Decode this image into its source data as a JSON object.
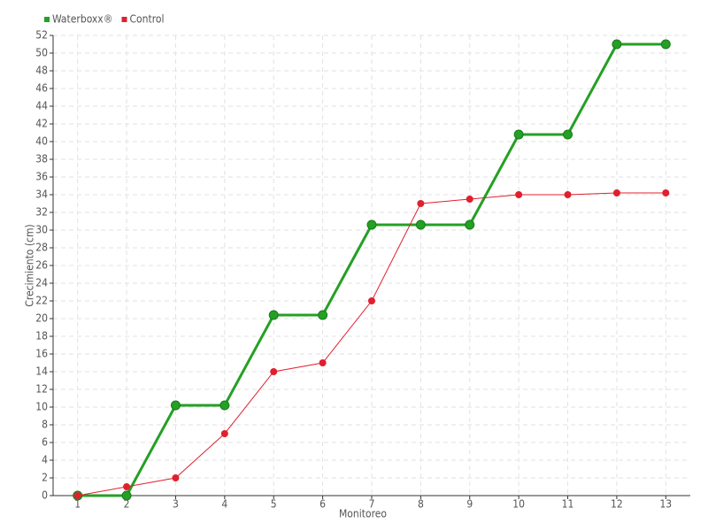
{
  "chart_data": {
    "type": "line",
    "x_label": "Monitoreo",
    "y_label": "Crecimiento (cm)",
    "categories": [
      "1",
      "2",
      "3",
      "4",
      "5",
      "6",
      "7",
      "8",
      "9",
      "10",
      "11",
      "12",
      "13"
    ],
    "series": [
      {
        "name": "Waterboxx®",
        "color": "#24a024",
        "values": [
          0,
          0,
          10.2,
          10.2,
          20.4,
          20.4,
          30.6,
          30.6,
          30.6,
          40.8,
          40.8,
          51,
          51
        ]
      },
      {
        "name": "Control",
        "color": "#e0202e",
        "values": [
          0,
          1,
          2,
          7,
          14,
          15,
          22,
          33,
          33.5,
          34,
          34,
          34.2,
          34.2
        ]
      }
    ],
    "ylim": [
      0,
      52
    ],
    "yticks": [
      0,
      2,
      4,
      6,
      8,
      10,
      12,
      14,
      16,
      18,
      20,
      22,
      24,
      26,
      28,
      30,
      32,
      34,
      36,
      38,
      40,
      42,
      44,
      46,
      48,
      50,
      52
    ],
    "grid": true,
    "legend": "top-left"
  }
}
